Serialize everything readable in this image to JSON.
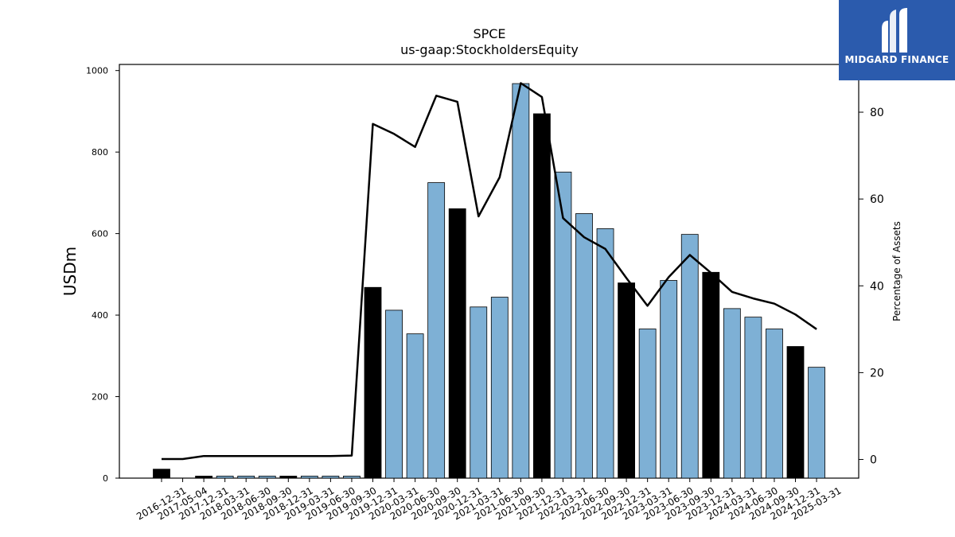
{
  "chart_data": {
    "type": "bar",
    "title": "SPCE",
    "subtitle": "us-gaap:StockholdersEquity",
    "ylabel": "USDm",
    "y2label": "Percentage of Assets",
    "ylim": [
      0,
      1015
    ],
    "y2lim": [
      -4.3,
      91.0
    ],
    "yticks": [
      0,
      200,
      400,
      600,
      800,
      1000
    ],
    "y2ticks": [
      0,
      20,
      40,
      60,
      80
    ],
    "grid": false,
    "categories": [
      "2016-12-31",
      "2017-05-04",
      "2017-12-31",
      "2018-03-31",
      "2018-06-30",
      "2018-09-30",
      "2018-12-31",
      "2019-03-31",
      "2019-06-30",
      "2019-09-30",
      "2019-12-31",
      "2020-03-31",
      "2020-06-30",
      "2020-09-30",
      "2020-12-31",
      "2021-03-31",
      "2021-06-30",
      "2021-09-30",
      "2021-12-31",
      "2022-03-31",
      "2022-06-30",
      "2022-09-30",
      "2022-12-31",
      "2023-03-31",
      "2023-06-30",
      "2023-09-30",
      "2023-12-31",
      "2024-03-31",
      "2024-06-30",
      "2024-09-30",
      "2024-12-31",
      "2025-03-31"
    ],
    "series": [
      {
        "kind": "bar",
        "values": [
          22,
          0,
          5,
          5,
          5,
          5,
          5,
          5,
          5,
          5,
          468,
          412,
          354,
          725,
          661,
          420,
          444,
          968,
          894,
          751,
          649,
          612,
          479,
          366,
          485,
          598,
          505,
          416,
          395,
          366,
          323,
          272
        ],
        "fiscal_year_end": [
          true,
          false,
          true,
          false,
          false,
          false,
          true,
          false,
          false,
          false,
          true,
          false,
          false,
          false,
          true,
          false,
          false,
          false,
          true,
          false,
          false,
          false,
          true,
          false,
          false,
          false,
          true,
          false,
          false,
          false,
          true,
          false
        ]
      },
      {
        "kind": "line",
        "axis": "y2",
        "values": [
          0.1,
          0.1,
          0.8,
          0.8,
          0.8,
          0.8,
          0.8,
          0.8,
          0.8,
          0.9,
          77.3,
          75.0,
          72.0,
          83.8,
          82.4,
          56.0,
          65.0,
          86.7,
          83.5,
          55.6,
          51.2,
          48.5,
          41.8,
          35.4,
          42.0,
          47.1,
          43.0,
          38.6,
          37.1,
          35.9,
          33.4,
          30.0
        ]
      }
    ],
    "colors": {
      "bar_regular": "#7eb0d5",
      "bar_fiscal": "#000000",
      "line": "#000000"
    }
  },
  "logo": {
    "text": "MIDGARD FINANCE",
    "background": "#2b5bad"
  }
}
